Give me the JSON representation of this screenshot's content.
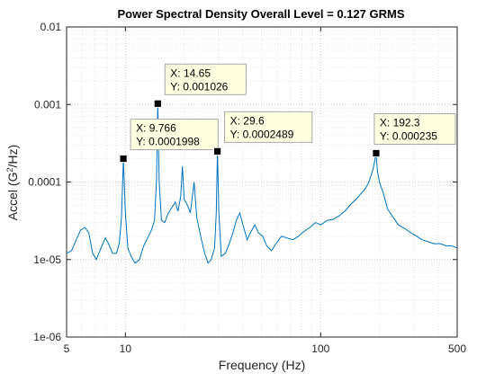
{
  "chart_data": {
    "type": "line",
    "title": "Power Spectral Density  Overall Level =  0.127 GRMS",
    "xlabel": "Frequency (Hz)",
    "ylabel_parts": [
      "Accel (G",
      "2",
      "/Hz)"
    ],
    "x_scale": "log",
    "y_scale": "log",
    "xlim": [
      5,
      500
    ],
    "ylim": [
      1e-06,
      0.01
    ],
    "grid": true,
    "series_color": "#0072BD",
    "x_ticks": [
      {
        "value": 5,
        "label": "5"
      },
      {
        "value": 10,
        "label": "10"
      },
      {
        "value": 100,
        "label": "100"
      },
      {
        "value": 500,
        "label": "500"
      }
    ],
    "y_ticks": [
      {
        "value": 1e-06,
        "label": "1e-06"
      },
      {
        "value": 1e-05,
        "label": "1e-05"
      },
      {
        "value": 0.0001,
        "label": "0.0001"
      },
      {
        "value": 0.001,
        "label": "0.001"
      },
      {
        "value": 0.01,
        "label": "0.01"
      }
    ],
    "series": [
      {
        "values": [
          [
            5.0,
            1.2e-05
          ],
          [
            5.3,
            1.3e-05
          ],
          [
            5.6,
            1.8e-05
          ],
          [
            5.9,
            2.4e-05
          ],
          [
            6.2,
            2.6e-05
          ],
          [
            6.5,
            2.2e-05
          ],
          [
            6.8,
            1.2e-05
          ],
          [
            7.1,
            1e-05
          ],
          [
            7.5,
            1.4e-05
          ],
          [
            7.9,
            1.9e-05
          ],
          [
            8.2,
            1.6e-05
          ],
          [
            8.6,
            1.2e-05
          ],
          [
            9.0,
            1.2e-05
          ],
          [
            9.3,
            1.6e-05
          ],
          [
            9.55,
            3.5e-05
          ],
          [
            9.766,
            0.0001998
          ],
          [
            10.0,
            4e-05
          ],
          [
            10.3,
            1.4e-05
          ],
          [
            10.7,
            1.1e-05
          ],
          [
            11.2,
            9e-06
          ],
          [
            11.8,
            1e-05
          ],
          [
            12.4,
            1.5e-05
          ],
          [
            13.0,
            1.9e-05
          ],
          [
            13.6,
            2.4e-05
          ],
          [
            14.1,
            3.2e-05
          ],
          [
            14.45,
            0.00011
          ],
          [
            14.65,
            0.001026
          ],
          [
            14.9,
            0.0001
          ],
          [
            15.3,
            3.2e-05
          ],
          [
            15.9,
            3e-05
          ],
          [
            16.6,
            4e-05
          ],
          [
            17.4,
            4.8e-05
          ],
          [
            18.0,
            5.5e-05
          ],
          [
            18.6,
            4.2e-05
          ],
          [
            19.2,
            6.5e-05
          ],
          [
            19.6,
            0.00016
          ],
          [
            20.0,
            6e-05
          ],
          [
            20.8,
            5e-05
          ],
          [
            21.5,
            4e-05
          ],
          [
            22.5,
            0.0001
          ],
          [
            23.2,
            3.5e-05
          ],
          [
            24.5,
            1.8e-05
          ],
          [
            25.5,
            1.2e-05
          ],
          [
            26.5,
            9e-06
          ],
          [
            27.5,
            1e-05
          ],
          [
            28.6,
            1.4e-05
          ],
          [
            29.2,
            4e-05
          ],
          [
            29.6,
            0.0002489
          ],
          [
            30.1,
            4e-05
          ],
          [
            31.0,
            1.1e-05
          ],
          [
            32.5,
            1.2e-05
          ],
          [
            34.0,
            1.6e-05
          ],
          [
            35.5,
            2.2e-05
          ],
          [
            37.0,
            3.2e-05
          ],
          [
            38.5,
            4e-05
          ],
          [
            40.0,
            2.8e-05
          ],
          [
            42.0,
            1.8e-05
          ],
          [
            44.0,
            2.3e-05
          ],
          [
            46.0,
            2.8e-05
          ],
          [
            48.0,
            2.2e-05
          ],
          [
            50.5,
            2e-05
          ],
          [
            53.0,
            1.5e-05
          ],
          [
            56.0,
            1.3e-05
          ],
          [
            59.0,
            1.6e-05
          ],
          [
            63.0,
            2e-05
          ],
          [
            67.0,
            1.9e-05
          ],
          [
            72.0,
            1.8e-05
          ],
          [
            77.0,
            2e-05
          ],
          [
            82.0,
            2.3e-05
          ],
          [
            88.0,
            2.6e-05
          ],
          [
            94.0,
            3e-05
          ],
          [
            100.0,
            2.8e-05
          ],
          [
            108.0,
            3.2e-05
          ],
          [
            116.0,
            3.3e-05
          ],
          [
            125.0,
            3.7e-05
          ],
          [
            134.0,
            4.3e-05
          ],
          [
            143.0,
            5.2e-05
          ],
          [
            152.0,
            6e-05
          ],
          [
            160.0,
            7e-05
          ],
          [
            168.0,
            8e-05
          ],
          [
            175.0,
            9.5e-05
          ],
          [
            181.0,
            0.00012
          ],
          [
            186.0,
            0.00015
          ],
          [
            190.0,
            0.0002
          ],
          [
            192.3,
            0.000235
          ],
          [
            195.0,
            0.00014
          ],
          [
            200.0,
            0.0001
          ],
          [
            210.0,
            7e-05
          ],
          [
            220.0,
            4.5e-05
          ],
          [
            235.0,
            3.5e-05
          ],
          [
            250.0,
            2.8e-05
          ],
          [
            270.0,
            2.5e-05
          ],
          [
            290.0,
            2.2e-05
          ],
          [
            310.0,
            2e-05
          ],
          [
            330.0,
            1.8e-05
          ],
          [
            355.0,
            1.7e-05
          ],
          [
            380.0,
            1.6e-05
          ],
          [
            410.0,
            1.6e-05
          ],
          [
            440.0,
            1.5e-05
          ],
          [
            470.0,
            1.5e-05
          ],
          [
            500.0,
            1.4e-05
          ]
        ]
      }
    ],
    "datatips": [
      {
        "x": 9.766,
        "y": 0.0001998,
        "x_text": "X: 9.766",
        "y_text": "Y: 0.0001998"
      },
      {
        "x": 14.65,
        "y": 0.001026,
        "x_text": "X: 14.65",
        "y_text": "Y: 0.001026"
      },
      {
        "x": 29.6,
        "y": 0.0002489,
        "x_text": "X: 29.6",
        "y_text": "Y: 0.0002489"
      },
      {
        "x": 192.3,
        "y": 0.000235,
        "x_text": "X: 192.3",
        "y_text": "Y: 0.000235"
      }
    ]
  }
}
